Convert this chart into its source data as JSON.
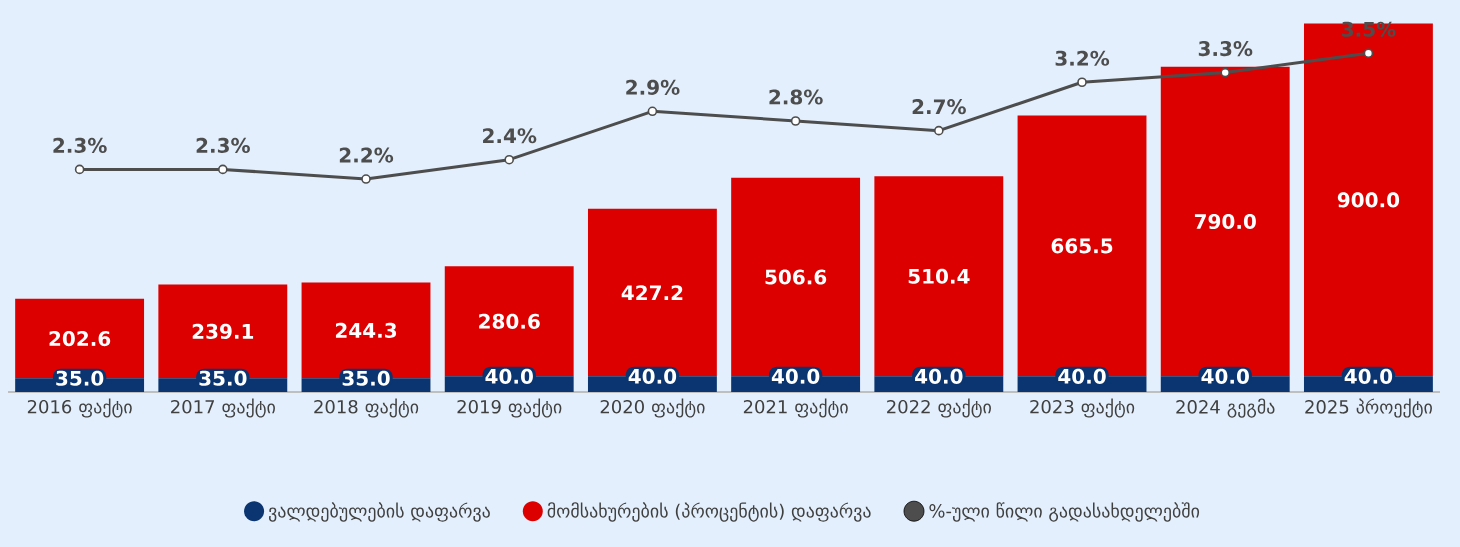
{
  "chart_data": {
    "type": "bar",
    "stacked": true,
    "categories": [
      "2016 ფაქტი",
      "2017 ფაქტი",
      "2018 ფაქტი",
      "2019 ფაქტი",
      "2020 ფაქტი",
      "2021 ფაქტი",
      "2022 ფაქტი",
      "2023 ფაქტი",
      "2024 გეგმა",
      "2025 პროექტი"
    ],
    "series": [
      {
        "name": "ვალდებულების დაფარვა",
        "color": "#0a3570",
        "values": [
          35.0,
          35.0,
          35.0,
          40.0,
          40.0,
          40.0,
          40.0,
          40.0,
          40.0,
          40.0
        ],
        "value_labels": [
          "35.0",
          "35.0",
          "35.0",
          "40.0",
          "40.0",
          "40.0",
          "40.0",
          "40.0",
          "40.0",
          "40.0"
        ]
      },
      {
        "name": "მომსახურების (პროცენტის) დაფარვა",
        "color": "#dd0000",
        "values": [
          202.6,
          239.1,
          244.3,
          280.6,
          427.2,
          506.6,
          510.4,
          665.5,
          790.0,
          900.0
        ],
        "value_labels": [
          "202.6",
          "239.1",
          "244.3",
          "280.6",
          "427.2",
          "506.6",
          "510.4",
          "665.5",
          "790.0",
          "900.0"
        ]
      },
      {
        "name": "%-ული წილი გადასახდელებში",
        "type": "line",
        "axis": "y2",
        "color": "#4d4d4d",
        "values": [
          2.3,
          2.3,
          2.2,
          2.4,
          2.9,
          2.8,
          2.7,
          3.2,
          3.3,
          3.5
        ],
        "value_labels": [
          "2.3%",
          "2.3%",
          "2.2%",
          "2.4%",
          "2.9%",
          "2.8%",
          "2.7%",
          "3.2%",
          "3.3%",
          "3.5%"
        ]
      }
    ],
    "ylim": [
      0,
      1000
    ],
    "y2lim": [
      0,
      4.05
    ],
    "tick_labels": "x",
    "legend": "bottom",
    "marker": "circle"
  }
}
